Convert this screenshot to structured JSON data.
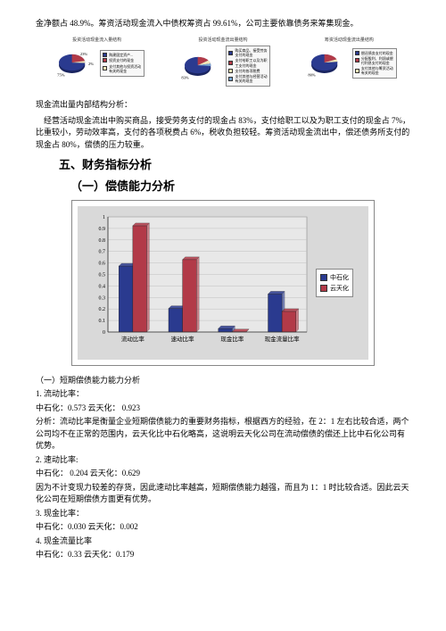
{
  "intro": "金净额占 48.9%。筹资活动现金流入中债权筹资占 99.61%，公司主要依靠债务来筹集现金。",
  "pies": {
    "titles": [
      "投资活动现金流入量结构",
      "投资活动现金流出量结构",
      "筹资活动现金流出量结构"
    ],
    "p1": {
      "slices": [
        {
          "pct": 75,
          "color": "#2a3a8f",
          "label": "购建固定资产..."
        },
        {
          "pct": 23,
          "color": "#b23a48",
          "label": "投资支付的现金"
        },
        {
          "pct": 2,
          "color": "#f4e8b8",
          "label": "支付其他与投资活动有关的现金"
        }
      ]
    },
    "p2": {
      "slices": [
        {
          "pct": 83,
          "color": "#2a3a8f",
          "label": "购买商品、接受劳务支付的现金"
        },
        {
          "pct": 7,
          "color": "#b23a48",
          "label": "支付给职工以及为职工支付的现金"
        },
        {
          "pct": 6,
          "color": "#f4e8b8",
          "label": "支付的各项税费"
        },
        {
          "pct": 4,
          "color": "#7aa8d4",
          "label": "支付其他与经营活动有关的现金"
        }
      ]
    },
    "p3": {
      "slices": [
        {
          "pct": 80,
          "color": "#2a3a8f",
          "label": "偿还债务支付的现金"
        },
        {
          "pct": 18,
          "color": "#b23a48",
          "label": "分配股利、利润或偿付利息支付的现金"
        },
        {
          "pct": 2,
          "color": "#f4e8b8",
          "label": "支付其他与筹资活动有关的现金"
        }
      ]
    }
  },
  "cash_struct_title": "现金流出量内部结构分析：",
  "cash_struct_body": "经营活动现金流出中购买商品，接受劳务支付的现金占 83%，支付给职工以及为职工支付的现金占 7%，比重较小，劳动效率高，支付的各项税费占 6%，税收负担较轻。筹资活动现金流出中，偿还债务所支付的现金占 80%，偿债的压力较重。",
  "sec5": "五、财务指标分析",
  "sec5_1": "（一）偿债能力分析",
  "bar": {
    "categories": [
      "流动比率",
      "速动比率",
      "现金比率",
      "现金流量比率"
    ],
    "series": [
      {
        "name": "中石化",
        "color": "#2a3a8f",
        "values": [
          0.573,
          0.204,
          0.03,
          0.33
        ]
      },
      {
        "name": "云天化",
        "color": "#b23a48",
        "values": [
          0.923,
          0.629,
          0.002,
          0.179
        ]
      }
    ],
    "ylim": [
      0,
      1.0
    ],
    "ytick_step": 0.1,
    "yticks": [
      "0",
      "0.1",
      "0.2",
      "0.3",
      "0.4",
      "0.5",
      "0.6",
      "0.7",
      "0.8",
      "0.9",
      "1"
    ],
    "bg": "#d9d9d9",
    "plot_bg": "#e8e8e8",
    "grid_color": "#bfbfbf"
  },
  "analysis": {
    "title": "（一）短期偿债能力能力分析",
    "l1": "1. 流动比率：",
    "l1v": "中石化：0.573     云天化： 0.923",
    "l1a": "分析：流动比率是衡量企业短期偿债能力的重要财务指标，根据西方的经验，在 2：1 左右比较合适，两个公司均不在正常的范围内，云天化比中石化略高，这说明云天化公司在流动偿债的偿还上比中石化公司有优势。",
    "l2": "2. 速动比率:",
    "l2v": "中石化： 0.204   云天化：0.629",
    "l2a": "因为不计变现力较差的存货，因此速动比率越高，短期偿债能力越强，而且为 1：1 时比较合适。因此云天化公司在短期偿债方面更有优势。",
    "l3": "3. 现金比率：",
    "l3v": "中石化：0.030    云天化：0.002",
    "l4": "4. 现金流量比率",
    "l4v": "中石化：0.33    云天化：0.179"
  }
}
